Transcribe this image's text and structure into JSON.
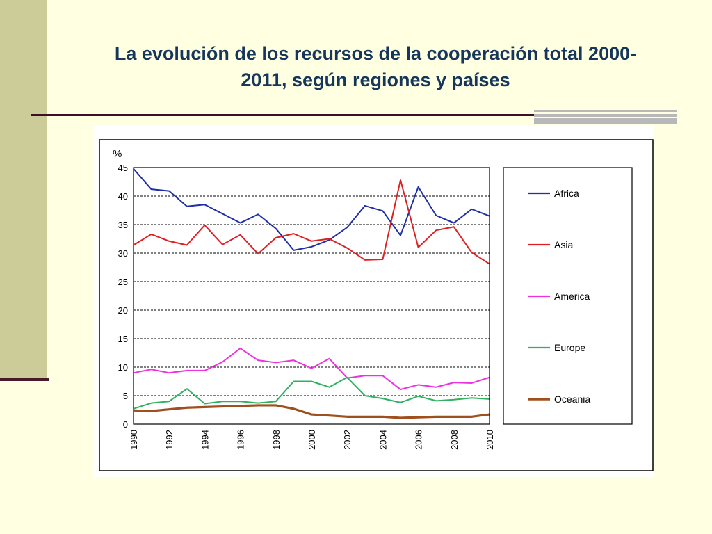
{
  "slide": {
    "title_lines": [
      "La evolución de los recursos de la cooperación total 2000-",
      "2011, según regiones y países"
    ]
  },
  "chart_data": {
    "type": "line",
    "ylabel": "%",
    "xlabel": "",
    "ylim": [
      0,
      45
    ],
    "y_ticks": [
      0,
      5,
      10,
      15,
      20,
      25,
      30,
      35,
      40,
      45
    ],
    "x_tick_labels": [
      "1990",
      "1992",
      "1994",
      "1996",
      "1998",
      "2000",
      "2002",
      "2004",
      "2006",
      "2008",
      "2010"
    ],
    "grid": "dashed horizontal",
    "legend_position": "right",
    "x": [
      1990,
      1991,
      1992,
      1993,
      1994,
      1995,
      1996,
      1997,
      1998,
      1999,
      2000,
      2001,
      2002,
      2003,
      2004,
      2005,
      2006,
      2007,
      2008,
      2009,
      2010
    ],
    "series": [
      {
        "name": "Africa",
        "color": "#1f2fa8",
        "values": [
          44.8,
          41.2,
          40.9,
          38.2,
          38.5,
          36.9,
          35.3,
          36.8,
          34.3,
          30.5,
          31.1,
          32.3,
          34.5,
          38.3,
          37.4,
          33.1,
          41.6,
          36.6,
          35.3,
          37.7,
          36.5
        ]
      },
      {
        "name": "Asia",
        "color": "#e02020",
        "values": [
          31.4,
          33.3,
          32.1,
          31.4,
          34.9,
          31.5,
          33.2,
          29.9,
          32.7,
          33.4,
          32.1,
          32.5,
          30.9,
          28.8,
          28.9,
          42.8,
          31.0,
          34.0,
          34.6,
          30.1,
          28.1
        ]
      },
      {
        "name": "America",
        "color": "#ee30e0",
        "values": [
          9.0,
          9.6,
          9.0,
          9.4,
          9.4,
          10.9,
          13.3,
          11.2,
          10.8,
          11.2,
          9.8,
          11.5,
          8.1,
          8.5,
          8.5,
          6.1,
          6.9,
          6.5,
          7.3,
          7.2,
          8.2
        ]
      },
      {
        "name": "Europe",
        "color": "#30b060",
        "values": [
          2.7,
          3.7,
          4.0,
          6.2,
          3.6,
          4.0,
          4.0,
          3.7,
          4.0,
          7.5,
          7.5,
          6.5,
          8.2,
          5.0,
          4.5,
          3.8,
          4.9,
          4.1,
          4.3,
          4.6,
          4.4
        ]
      },
      {
        "name": "Oceania",
        "color": "#a0501e",
        "values": [
          2.4,
          2.3,
          2.6,
          2.9,
          3.0,
          3.1,
          3.2,
          3.3,
          3.3,
          2.7,
          1.7,
          1.5,
          1.3,
          1.3,
          1.3,
          1.1,
          1.2,
          1.3,
          1.3,
          1.3,
          1.7
        ]
      }
    ]
  }
}
